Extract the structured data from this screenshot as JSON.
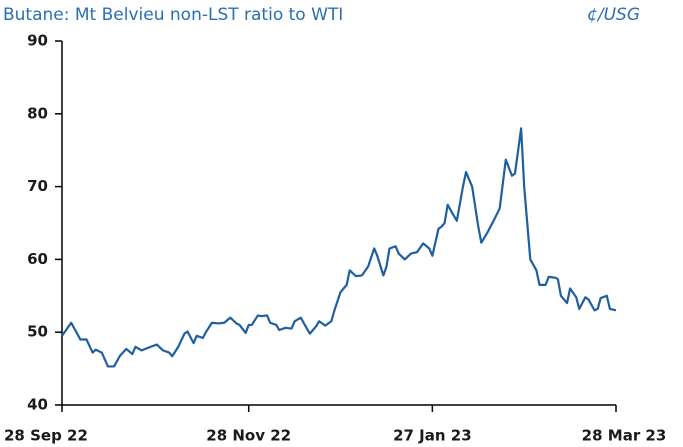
{
  "chart_data": {
    "type": "line",
    "title": "Butane: Mt Belvieu non-LST ratio to WTI",
    "unit_label": "¢/USG",
    "x": [
      "2022-09-28",
      "2022-10-01",
      "2022-10-04",
      "2022-10-06",
      "2022-10-08",
      "2022-10-09",
      "2022-10-11",
      "2022-10-13",
      "2022-10-15",
      "2022-10-17",
      "2022-10-19",
      "2022-10-21",
      "2022-10-22",
      "2022-10-24",
      "2022-10-27",
      "2022-10-29",
      "2022-10-31",
      "2022-11-02",
      "2022-11-03",
      "2022-11-05",
      "2022-11-07",
      "2022-11-08",
      "2022-11-10",
      "2022-11-11",
      "2022-11-13",
      "2022-11-14",
      "2022-11-16",
      "2022-11-18",
      "2022-11-20",
      "2022-11-22",
      "2022-11-24",
      "2022-11-25",
      "2022-11-27",
      "2022-11-28",
      "2022-11-29",
      "2022-12-01",
      "2022-12-02",
      "2022-12-04",
      "2022-12-05",
      "2022-12-07",
      "2022-12-08",
      "2022-12-10",
      "2022-12-12",
      "2022-12-13",
      "2022-12-15",
      "2022-12-17",
      "2022-12-18",
      "2022-12-20",
      "2022-12-21",
      "2022-12-23",
      "2022-12-25",
      "2022-12-26",
      "2022-12-28",
      "2022-12-30",
      "2022-12-31",
      "2023-01-02",
      "2023-01-04",
      "2023-01-06",
      "2023-01-08",
      "2023-01-09",
      "2023-01-11",
      "2023-01-12",
      "2023-01-13",
      "2023-01-15",
      "2023-01-16",
      "2023-01-18",
      "2023-01-20",
      "2023-01-22",
      "2023-01-24",
      "2023-01-26",
      "2023-01-27",
      "2023-01-29",
      "2023-01-30",
      "2023-01-31",
      "2023-02-01",
      "2023-02-03",
      "2023-02-04",
      "2023-02-06",
      "2023-02-07",
      "2023-02-09",
      "2023-02-11",
      "2023-02-12",
      "2023-02-14",
      "2023-02-16",
      "2023-02-18",
      "2023-02-20",
      "2023-02-22",
      "2023-02-23",
      "2023-02-25",
      "2023-02-26",
      "2023-02-28",
      "2023-03-02",
      "2023-03-03",
      "2023-03-05",
      "2023-03-06",
      "2023-03-08",
      "2023-03-09",
      "2023-03-10",
      "2023-03-12",
      "2023-03-13",
      "2023-03-15",
      "2023-03-16",
      "2023-03-18",
      "2023-03-19",
      "2023-03-21",
      "2023-03-22",
      "2023-03-23",
      "2023-03-25",
      "2023-03-26",
      "2023-03-28"
    ],
    "series": [
      {
        "color": "#1f5fa0",
        "values": [
          49.5,
          51.3,
          49,
          49,
          47.2,
          47.6,
          47.2,
          45.3,
          45.3,
          46.8,
          47.7,
          47,
          48,
          47.5,
          48,
          48.3,
          47.5,
          47.2,
          46.7,
          48,
          49.8,
          50.1,
          48.5,
          49.5,
          49.2,
          50,
          51.3,
          51.2,
          51.3,
          52,
          51.2,
          51,
          49.9,
          51,
          51,
          52.3,
          52.2,
          52.3,
          51.3,
          51,
          50.3,
          50.6,
          50.5,
          51.5,
          52,
          50.5,
          49.8,
          50.8,
          51.5,
          50.9,
          51.5,
          53,
          55.5,
          56.5,
          58.5,
          57.7,
          57.8,
          59,
          61.5,
          60.5,
          57.8,
          59,
          61.5,
          61.8,
          60.8,
          60,
          60.8,
          61,
          62.2,
          61.5,
          60.5,
          64.2,
          64.5,
          65,
          67.5,
          66,
          65.3,
          70,
          72,
          70,
          64.5,
          62.3,
          63.7,
          65.3,
          67,
          73.7,
          71.5,
          71.8,
          78,
          70,
          60,
          58.5,
          56.5,
          56.5,
          57.6,
          57.5,
          57.3,
          55,
          54,
          56,
          54.8,
          53.2,
          54.8,
          54.5,
          53,
          53.2,
          54.7,
          55,
          53.2,
          53
        ]
      }
    ],
    "xlim": [
      "2022-09-28",
      "2023-03-28"
    ],
    "xticks": [
      {
        "value": "2022-09-28",
        "label": "28 Sep 22"
      },
      {
        "value": "2022-11-28",
        "label": "28 Nov 22"
      },
      {
        "value": "2023-01-27",
        "label": "27 Jan 23"
      },
      {
        "value": "2023-03-28",
        "label": "28 Mar 23"
      }
    ],
    "ylim": [
      40,
      90
    ],
    "yticks": [
      40,
      50,
      60,
      70,
      80,
      90
    ],
    "grid": false
  }
}
